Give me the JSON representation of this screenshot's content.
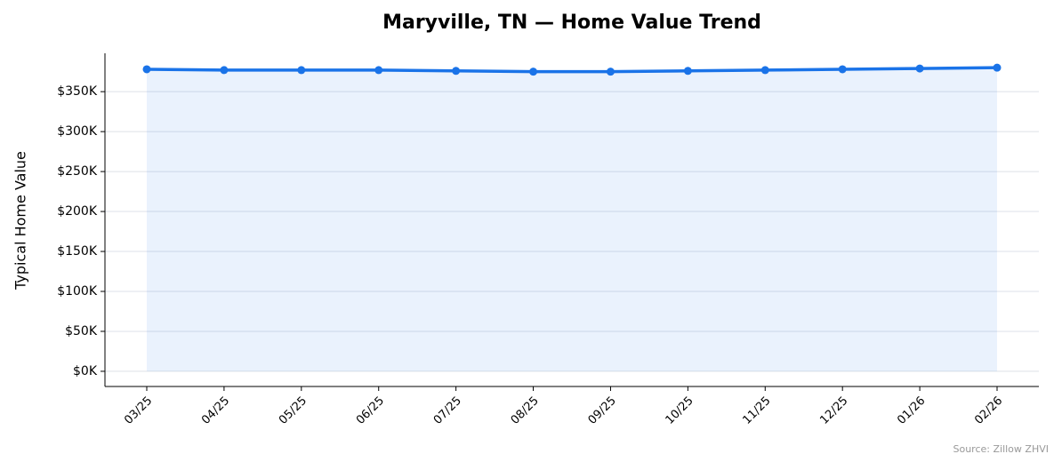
{
  "chart_data": {
    "type": "line",
    "title": "Maryville, TN — Home Value Trend",
    "y_label": "Typical Home Value",
    "source": "Source: Zillow ZHVI",
    "categories": [
      "03/25",
      "04/25",
      "05/25",
      "06/25",
      "07/25",
      "08/25",
      "09/25",
      "10/25",
      "11/25",
      "12/25",
      "01/26",
      "02/26"
    ],
    "values": [
      378000,
      377000,
      377000,
      377000,
      376000,
      375000,
      375000,
      376000,
      377000,
      378000,
      379000,
      380000
    ],
    "color": "#1a73e8",
    "fill_area": true,
    "grid": true,
    "ylim": [
      -19000,
      398000
    ],
    "yticks": [
      {
        "value": 0,
        "label": "$0K"
      },
      {
        "value": 50000,
        "label": "$50K"
      },
      {
        "value": 100000,
        "label": "$100K"
      },
      {
        "value": 150000,
        "label": "$150K"
      },
      {
        "value": 200000,
        "label": "$200K"
      },
      {
        "value": 250000,
        "label": "$250K"
      },
      {
        "value": 300000,
        "label": "$300K"
      },
      {
        "value": 350000,
        "label": "$350K"
      }
    ]
  }
}
